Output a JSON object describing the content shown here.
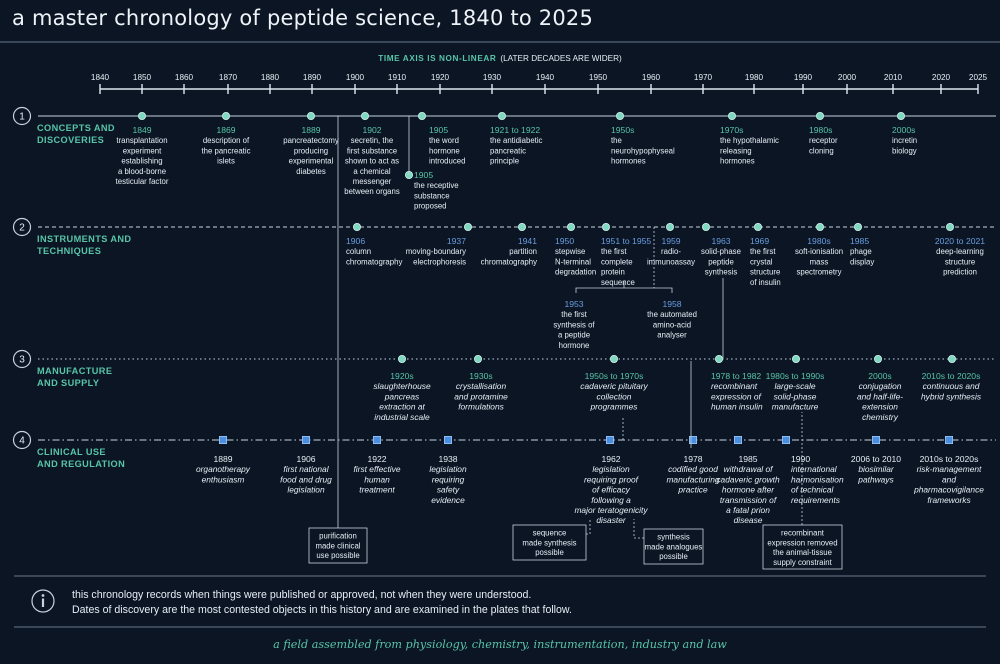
{
  "title": "a master chronology of peptide science, 1840 to 2025",
  "axis": {
    "caption_bold": "TIME AXIS IS NON-LINEAR",
    "caption_rest": "(LATER DECADES ARE WIDER)",
    "ticks": [
      "1840",
      "1850",
      "1860",
      "1870",
      "1880",
      "1890",
      "1900",
      "1910",
      "1920",
      "1930",
      "1940",
      "1950",
      "1960",
      "1970",
      "1980",
      "1990",
      "2000",
      "2010",
      "2020",
      "2025"
    ]
  },
  "lanes": [
    {
      "number": "1",
      "title": [
        "CONCEPTS AND",
        "DISCOVERIES"
      ],
      "style": "solid",
      "marker": "circle"
    },
    {
      "number": "2",
      "title": [
        "INSTRUMENTS AND",
        "TECHNIQUES"
      ],
      "style": "dashed",
      "marker": "circle"
    },
    {
      "number": "3",
      "title": [
        "MANUFACTURE",
        "AND SUPPLY"
      ],
      "style": "dotted",
      "marker": "circle"
    },
    {
      "number": "4",
      "title": [
        "CLINICAL USE",
        "AND REGULATION"
      ],
      "style": "dashdot",
      "marker": "square"
    }
  ],
  "events": [
    {
      "lane": 1,
      "year": 1849,
      "date": "1849",
      "lines": [
        "transplantation",
        "experiment",
        "establishing",
        "a blood-borne",
        "testicular factor"
      ]
    },
    {
      "lane": 1,
      "year": 1869,
      "date": "1869",
      "lines": [
        "description of",
        "the pancreatic",
        "islets"
      ]
    },
    {
      "lane": 1,
      "year": 1889,
      "date": "1889",
      "lines": [
        "pancreatectomy",
        "producing",
        "experimental",
        "diabetes"
      ]
    },
    {
      "lane": 1,
      "year": 1902,
      "date": "1902",
      "lines": [
        "secretin, the",
        "first substance",
        "shown to act as",
        "a chemical",
        "messenger",
        "between organs"
      ]
    },
    {
      "lane": 1,
      "year": 1905,
      "date": "1905",
      "lines": [
        "the word",
        "hormone",
        "introduced"
      ]
    },
    {
      "lane": 1,
      "year": 1905,
      "date": "1905",
      "lines": [
        "the receptive",
        "substance",
        "proposed"
      ]
    },
    {
      "lane": 1,
      "year": 1921,
      "date": "1921 to 1922",
      "lines": [
        "the antidiabetic",
        "pancreatic",
        "principle"
      ]
    },
    {
      "lane": 1,
      "year": 1955,
      "date": "1950s",
      "lines": [
        "the",
        "neurohypophyseal",
        "hormones"
      ]
    },
    {
      "lane": 1,
      "year": 1975,
      "date": "1970s",
      "lines": [
        "the hypothalamic",
        "releasing",
        "hormones"
      ]
    },
    {
      "lane": 1,
      "year": 1985,
      "date": "1980s",
      "lines": [
        "receptor",
        "cloning"
      ]
    },
    {
      "lane": 1,
      "year": 2005,
      "date": "2000s",
      "lines": [
        "incretin",
        "biology"
      ]
    },
    {
      "lane": 2,
      "year": 1906,
      "date": "1906",
      "lines": [
        "column",
        "chromatography"
      ]
    },
    {
      "lane": 2,
      "year": 1937,
      "date": "1937",
      "lines": [
        "moving-boundary",
        "electrophoresis"
      ]
    },
    {
      "lane": 2,
      "year": 1941,
      "date": "1941",
      "lines": [
        "partition",
        "chromatography"
      ]
    },
    {
      "lane": 2,
      "year": 1950,
      "date": "1950",
      "lines": [
        "stepwise",
        "N-terminal",
        "degradation"
      ]
    },
    {
      "lane": 2,
      "year": 1951,
      "date": "1951 to 1955",
      "lines": [
        "the first",
        "complete",
        "protein",
        "sequence"
      ]
    },
    {
      "lane": 2,
      "year": 1953,
      "date": "1953",
      "lines": [
        "the first",
        "synthesis of",
        "a peptide",
        "hormone"
      ]
    },
    {
      "lane": 2,
      "year": 1958,
      "date": "1958",
      "lines": [
        "the automated",
        "amino-acid",
        "analyser"
      ]
    },
    {
      "lane": 2,
      "year": 1959,
      "date": "1959",
      "lines": [
        "radio-",
        "immunoassay"
      ]
    },
    {
      "lane": 2,
      "year": 1963,
      "date": "1963",
      "lines": [
        "solid-phase",
        "peptide",
        "synthesis"
      ]
    },
    {
      "lane": 2,
      "year": 1969,
      "date": "1969",
      "lines": [
        "the first",
        "crystal",
        "structure",
        "of insulin"
      ]
    },
    {
      "lane": 2,
      "year": 1985,
      "date": "1980s",
      "lines": [
        "soft-ionisation",
        "mass",
        "spectrometry"
      ]
    },
    {
      "lane": 2,
      "year": 1985,
      "date": "1985",
      "lines": [
        "phage",
        "display"
      ]
    },
    {
      "lane": 2,
      "year": 2020,
      "date": "2020 to 2021",
      "lines": [
        "deep-learning",
        "structure",
        "prediction"
      ]
    },
    {
      "lane": 3,
      "year": 1925,
      "date": "1920s",
      "lines": [
        "slaughterhouse",
        "pancreas",
        "extraction at",
        "industrial scale"
      ]
    },
    {
      "lane": 3,
      "year": 1935,
      "date": "1930s",
      "lines": [
        "crystallisation",
        "and protamine",
        "formulations"
      ]
    },
    {
      "lane": 3,
      "year": 1960,
      "date": "1950s to 1970s",
      "lines": [
        "cadaveric pituitary",
        "collection",
        "programmes"
      ]
    },
    {
      "lane": 3,
      "year": 1978,
      "date": "1978 to 1982",
      "lines": [
        "recombinant",
        "expression of",
        "human insulin"
      ]
    },
    {
      "lane": 3,
      "year": 1985,
      "date": "1980s to 1990s",
      "lines": [
        "large-scale",
        "solid-phase",
        "manufacture"
      ]
    },
    {
      "lane": 3,
      "year": 2005,
      "date": "2000s",
      "lines": [
        "conjugation",
        "and half-life-",
        "extension",
        "chemistry"
      ]
    },
    {
      "lane": 3,
      "year": 2015,
      "date": "2010s to 2020s",
      "lines": [
        "continuous and",
        "hybrid synthesis"
      ]
    },
    {
      "lane": 4,
      "year": 1889,
      "date": "1889",
      "lines": [
        "organotherapy",
        "enthusiasm"
      ]
    },
    {
      "lane": 4,
      "year": 1906,
      "date": "1906",
      "lines": [
        "first national",
        "food and drug",
        "legislation"
      ]
    },
    {
      "lane": 4,
      "year": 1922,
      "date": "1922",
      "lines": [
        "first effective",
        "human",
        "treatment"
      ]
    },
    {
      "lane": 4,
      "year": 1938,
      "date": "1938",
      "lines": [
        "legislation",
        "requiring",
        "safety",
        "evidence"
      ]
    },
    {
      "lane": 4,
      "year": 1962,
      "date": "1962",
      "lines": [
        "legislation",
        "requiring proof",
        "of efficacy",
        "following a",
        "major teratogenicity",
        "disaster"
      ]
    },
    {
      "lane": 4,
      "year": 1978,
      "date": "1978",
      "lines": [
        "codified good",
        "manufacturing",
        "practice"
      ]
    },
    {
      "lane": 4,
      "year": 1985,
      "date": "1985",
      "lines": [
        "withdrawal of",
        "cadaveric growth",
        "hormone after",
        "transmission of",
        "a fatal prion",
        "disease"
      ]
    },
    {
      "lane": 4,
      "year": 1990,
      "date": "1990",
      "lines": [
        "international",
        "harmonisation",
        "of technical",
        "requirements"
      ]
    },
    {
      "lane": 4,
      "year": 2006,
      "date": "2006 to 2010",
      "lines": [
        "biosimilar",
        "pathways"
      ]
    },
    {
      "lane": 4,
      "year": 2015,
      "date": "2010s to 2020s",
      "lines": [
        "risk-management",
        "and",
        "pharmacovigilance",
        "frameworks"
      ]
    }
  ],
  "notes": [
    {
      "lines": [
        "purification",
        "made clinical",
        "use possible"
      ]
    },
    {
      "lines": [
        "sequence",
        "made synthesis",
        "possible"
      ]
    },
    {
      "lines": [
        "synthesis",
        "made analogues",
        "possible"
      ]
    },
    {
      "lines": [
        "recombinant",
        "expression removed",
        "the animal-tissue",
        "supply constraint"
      ]
    }
  ],
  "info": {
    "line1": "this chronology records when things were published or approved, not when they were understood.",
    "line2": "Dates of discovery are the most contested objects in this history and are examined in the plates that follow."
  },
  "footer": "a field assembled from physiology, chemistry, instrumentation, industry and law",
  "colors": {
    "background": "#0b1524",
    "axis": "#dfe7f0",
    "accent_teal": "#58c4a8",
    "marker_fill": "#7fd8c2",
    "date_blue": "#6a9ee0",
    "square_blue": "#4a8fe0",
    "lane_line": "#c6d2de",
    "text": "#e6edf5"
  },
  "icons": {
    "info": "info-circle-icon"
  }
}
